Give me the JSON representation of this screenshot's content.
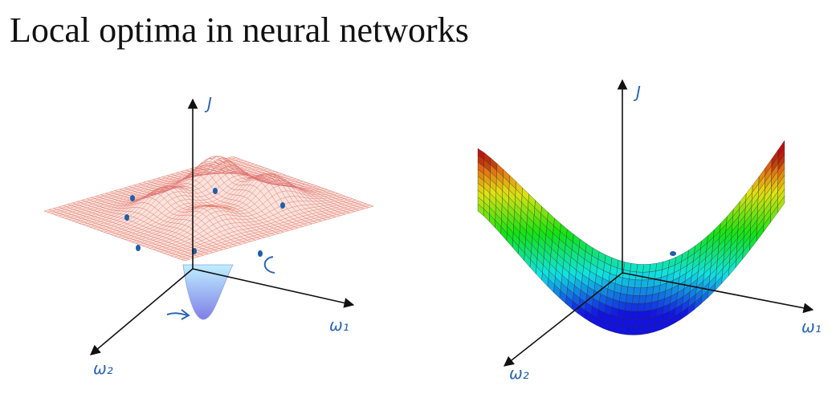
{
  "title": "Local optima in neural networks",
  "plots": [
    {
      "axes": {
        "z": "J",
        "x": "ω₁",
        "y": "ω₂"
      }
    },
    {
      "axes": {
        "z": "J",
        "x": "ω₁",
        "y": "ω₂"
      }
    }
  ]
}
